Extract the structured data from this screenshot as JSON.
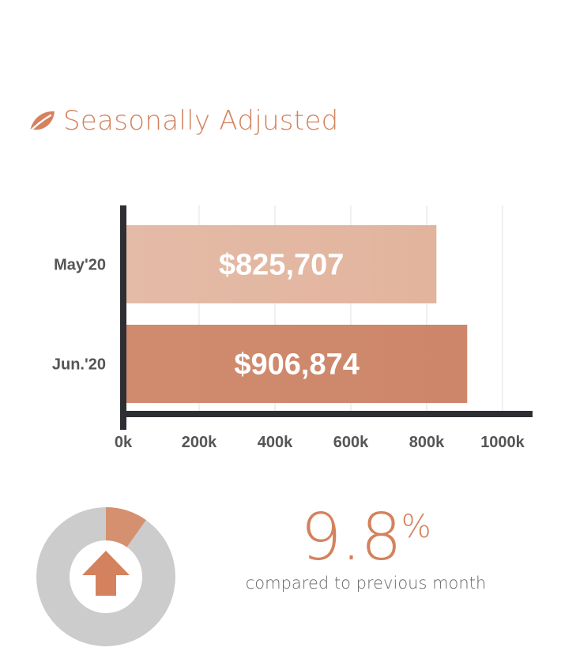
{
  "header": {
    "title": "Seasonally Adjusted",
    "icon": "leaf-icon"
  },
  "colors": {
    "accent": "#d4825d",
    "bar_light": "#e3b7a2",
    "bar_dark": "#cd876a",
    "gray": "#cccccc"
  },
  "chart_data": {
    "type": "bar",
    "orientation": "horizontal",
    "categories": [
      "May'20",
      "Jun.'20"
    ],
    "values": [
      825707,
      906874
    ],
    "data_labels": [
      "$825,707",
      "$906,874"
    ],
    "xticks": [
      "0k",
      "200k",
      "400k",
      "600k",
      "800k",
      "1000k"
    ],
    "xlim": [
      0,
      1100000
    ],
    "grid": "vertical"
  },
  "change": {
    "value": "9.8",
    "unit": "%",
    "caption": "compared to previous month",
    "fraction": 0.098,
    "direction": "up",
    "icon": "arrow-up-icon"
  }
}
